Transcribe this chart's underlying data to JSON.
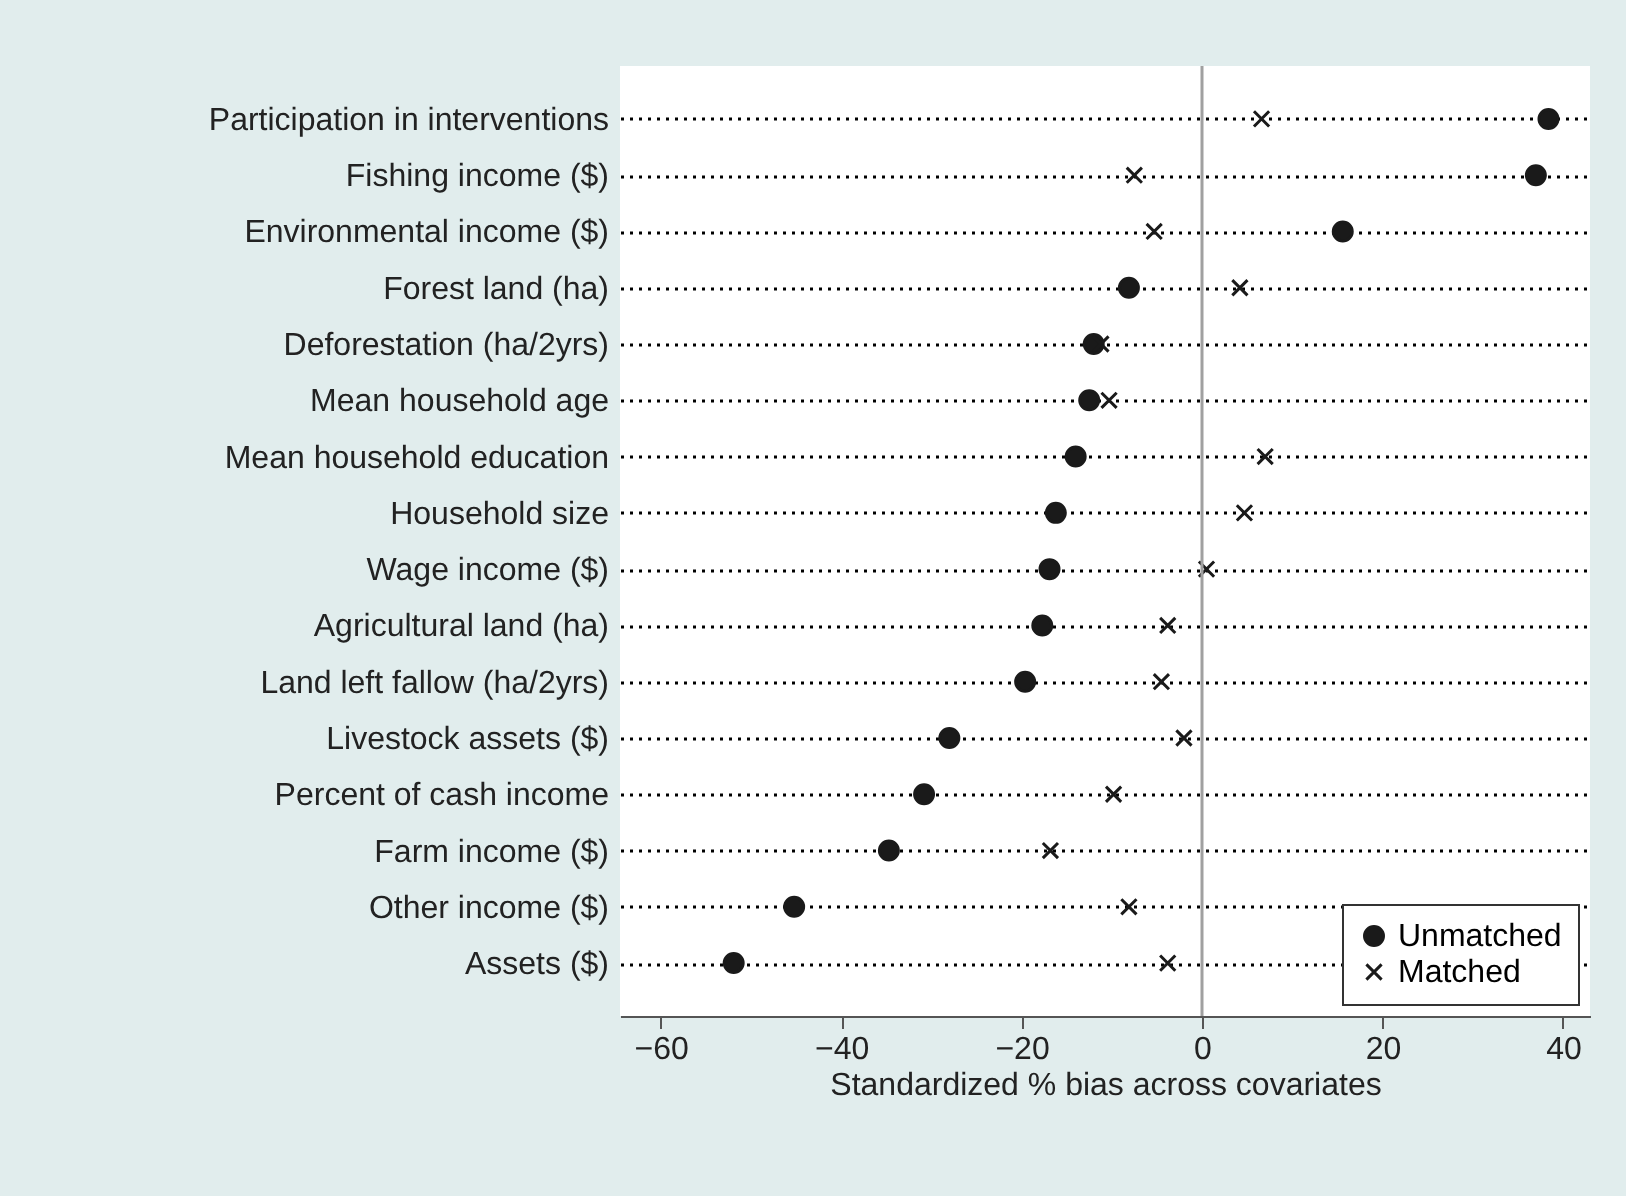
{
  "chart_data": {
    "type": "scatter",
    "orientation": "horizontal",
    "xlabel": "Standardized % bias across covariates",
    "categories": [
      "Participation in interventions",
      "Fishing income ($)",
      "Environmental income ($)",
      "Forest land (ha)",
      "Deforestation (ha/2yrs)",
      "Mean household age",
      "Mean household education",
      "Household size",
      "Wage income ($)",
      "Agricultural land (ha)",
      "Land left fallow (ha/2yrs)",
      "Livestock assets ($)",
      "Percent of cash income",
      "Farm income ($)",
      "Other income ($)",
      "Assets ($)"
    ],
    "series": [
      {
        "name": "Unmatched",
        "color": "#1a1a1a",
        "marker": "circle",
        "values": [
          38.4,
          37.0,
          15.6,
          -8.1,
          -12.0,
          -12.5,
          -14.0,
          -16.2,
          -16.9,
          -17.7,
          -19.6,
          -28.0,
          -30.8,
          -34.7,
          -45.2,
          -51.9
        ]
      },
      {
        "name": "Matched",
        "color": "#1a1a1a",
        "marker": "cross",
        "values": [
          6.6,
          -7.5,
          -5.3,
          4.2,
          -11.2,
          -10.3,
          7.0,
          4.7,
          0.5,
          -3.8,
          -4.5,
          -2.0,
          -9.8,
          -16.8,
          -8.1,
          -3.8
        ]
      }
    ],
    "xlim": [
      -64.5,
      43
    ],
    "xticks": [
      -60,
      -40,
      -20,
      0,
      20,
      40
    ],
    "grid": "y",
    "legend": "bottom right",
    "ref_lines": [
      {
        "axis": "x",
        "value": 0,
        "color": "#a0a0a0"
      }
    ]
  }
}
